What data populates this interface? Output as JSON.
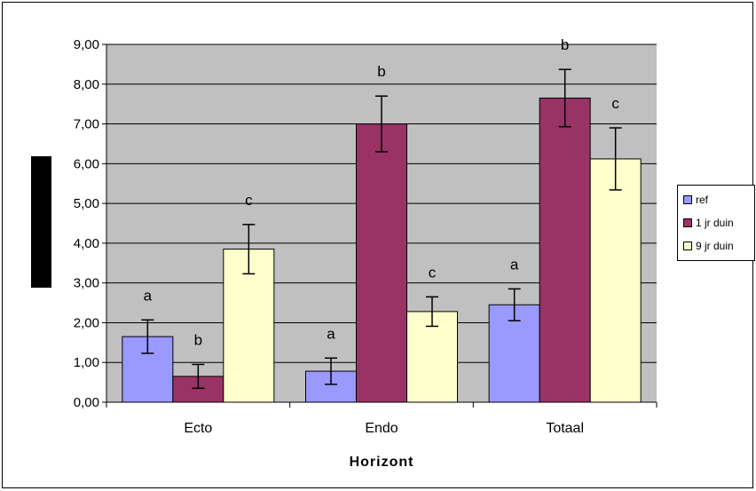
{
  "chart_data": {
    "type": "bar",
    "title": "",
    "xlabel": "Horizont",
    "ylabel": "",
    "ylim": [
      0,
      9
    ],
    "yticks": [
      "0,00",
      "1,00",
      "2,00",
      "3,00",
      "4,00",
      "5,00",
      "6,00",
      "7,00",
      "8,00",
      "9,00"
    ],
    "categories": [
      "Ecto",
      "Endo",
      "Totaal"
    ],
    "grid": true,
    "legend_position": "right",
    "series": [
      {
        "name": "ref",
        "color": "#9999ff",
        "values": [
          1.65,
          0.78,
          2.45
        ],
        "errors": [
          0.42,
          0.33,
          0.4
        ],
        "letters": [
          "a",
          "a",
          "a"
        ]
      },
      {
        "name": "1 jr duin",
        "color": "#993366",
        "values": [
          0.65,
          7.0,
          7.65
        ],
        "errors": [
          0.3,
          0.7,
          0.72
        ],
        "letters": [
          "b",
          "b",
          "b"
        ]
      },
      {
        "name": "9 jr duin",
        "color": "#ffffcc",
        "values": [
          3.85,
          2.28,
          6.12
        ],
        "errors": [
          0.62,
          0.37,
          0.78
        ],
        "letters": [
          "c",
          "c",
          "c"
        ]
      }
    ]
  },
  "colors": {
    "plot_background": "#c0c0c0",
    "gridline": "#000000"
  }
}
